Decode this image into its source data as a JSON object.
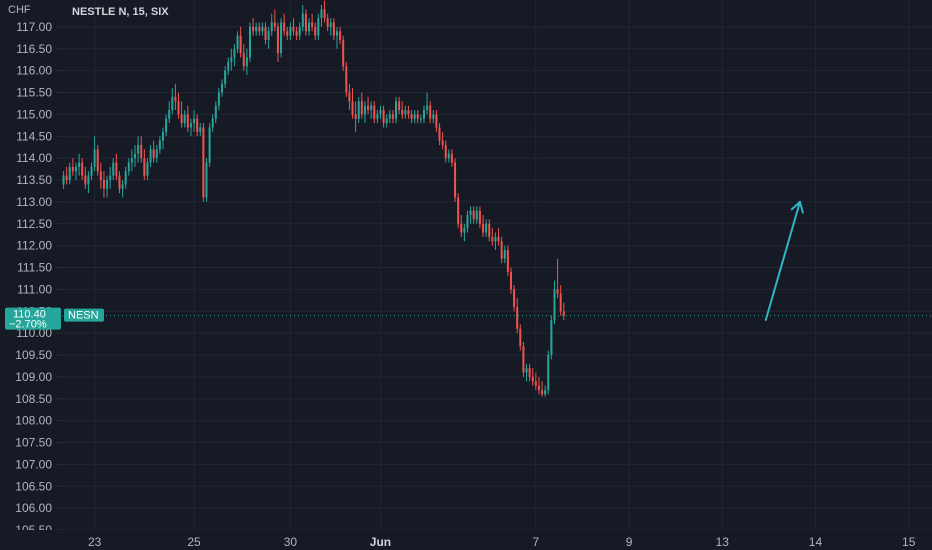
{
  "chart_header": {
    "currency": "CHF",
    "title": "NESTLE N, 15, SIX"
  },
  "colors": {
    "background": "#161a25",
    "grid": "#222633",
    "up": "#26a69a",
    "down": "#ef5350",
    "axis_text": "#b2b5be",
    "price_line": "#26a69a",
    "arrow": "#2fb5c7"
  },
  "price_badge": {
    "price": "110.40",
    "change": "−2.70%",
    "symbol": "NESN"
  },
  "chart_data": {
    "type": "candlestick",
    "title": "NESTLE N, 15, SIX",
    "currency": "CHF",
    "ylim": [
      105.5,
      117.5
    ],
    "y_ticks": [
      "105.50",
      "106.00",
      "106.50",
      "107.00",
      "107.50",
      "108.00",
      "108.50",
      "109.00",
      "109.50",
      "110.00",
      "110.50",
      "111.00",
      "111.50",
      "112.00",
      "112.50",
      "113.00",
      "113.50",
      "114.00",
      "114.50",
      "115.00",
      "115.50",
      "116.00",
      "116.50",
      "117.00"
    ],
    "x_ticks": [
      {
        "label": "23",
        "bold": false
      },
      {
        "label": "25",
        "bold": false
      },
      {
        "label": "30",
        "bold": false
      },
      {
        "label": "Jun",
        "bold": true
      },
      {
        "label": "7",
        "bold": false
      },
      {
        "label": "9",
        "bold": false
      },
      {
        "label": "13",
        "bold": false
      },
      {
        "label": "14",
        "bold": false
      },
      {
        "label": "15",
        "bold": false
      }
    ],
    "x_tick_index": [
      10,
      42,
      73,
      102,
      152,
      182,
      212,
      242,
      272
    ],
    "total_slots": 280,
    "last_price": 110.4,
    "change_pct": "−2.70%",
    "candles": [
      [
        113.4,
        113.7,
        113.3,
        113.6
      ],
      [
        113.6,
        113.8,
        113.4,
        113.5
      ],
      [
        113.5,
        113.9,
        113.4,
        113.8
      ],
      [
        113.8,
        114.0,
        113.6,
        113.7
      ],
      [
        113.7,
        113.9,
        113.5,
        113.8
      ],
      [
        113.8,
        114.1,
        113.6,
        113.9
      ],
      [
        113.9,
        114.0,
        113.5,
        113.6
      ],
      [
        113.6,
        113.8,
        113.3,
        113.4
      ],
      [
        113.4,
        113.7,
        113.2,
        113.6
      ],
      [
        113.6,
        113.9,
        113.5,
        113.8
      ],
      [
        113.8,
        114.5,
        113.7,
        114.2
      ],
      [
        114.2,
        114.3,
        113.6,
        113.7
      ],
      [
        113.7,
        113.9,
        113.3,
        113.5
      ],
      [
        113.5,
        113.7,
        113.1,
        113.3
      ],
      [
        113.3,
        113.6,
        113.1,
        113.5
      ],
      [
        113.5,
        113.8,
        113.3,
        113.6
      ],
      [
        113.6,
        114.0,
        113.5,
        113.9
      ],
      [
        113.9,
        114.1,
        113.5,
        113.6
      ],
      [
        113.6,
        113.7,
        113.2,
        113.3
      ],
      [
        113.3,
        113.5,
        113.1,
        113.4
      ],
      [
        113.4,
        113.8,
        113.3,
        113.7
      ],
      [
        113.7,
        114.0,
        113.6,
        113.9
      ],
      [
        113.9,
        114.2,
        113.7,
        114.0
      ],
      [
        114.0,
        114.3,
        113.8,
        114.1
      ],
      [
        114.1,
        114.5,
        113.9,
        114.3
      ],
      [
        114.3,
        114.5,
        113.9,
        114.0
      ],
      [
        114.0,
        114.2,
        113.5,
        113.6
      ],
      [
        113.6,
        114.0,
        113.5,
        113.9
      ],
      [
        113.9,
        114.3,
        113.8,
        114.2
      ],
      [
        114.2,
        114.4,
        113.9,
        114.0
      ],
      [
        114.0,
        114.3,
        113.9,
        114.2
      ],
      [
        114.2,
        114.5,
        114.1,
        114.4
      ],
      [
        114.4,
        114.7,
        114.2,
        114.6
      ],
      [
        114.6,
        115.0,
        114.5,
        114.9
      ],
      [
        114.9,
        115.3,
        114.8,
        115.1
      ],
      [
        115.1,
        115.6,
        115.0,
        115.4
      ],
      [
        115.4,
        115.7,
        115.1,
        115.3
      ],
      [
        115.3,
        115.5,
        114.9,
        115.0
      ],
      [
        115.0,
        115.3,
        114.7,
        114.8
      ],
      [
        114.8,
        115.1,
        114.7,
        115.0
      ],
      [
        115.0,
        115.2,
        114.6,
        114.7
      ],
      [
        114.7,
        114.9,
        114.5,
        114.8
      ],
      [
        114.8,
        115.1,
        114.6,
        114.9
      ],
      [
        114.9,
        115.0,
        114.5,
        114.6
      ],
      [
        114.6,
        114.8,
        114.5,
        114.7
      ],
      [
        114.7,
        114.8,
        113.0,
        113.1
      ],
      [
        113.1,
        114.0,
        113.0,
        113.9
      ],
      [
        113.9,
        114.8,
        113.8,
        114.7
      ],
      [
        114.7,
        115.0,
        114.6,
        114.9
      ],
      [
        114.9,
        115.3,
        114.8,
        115.2
      ],
      [
        115.2,
        115.6,
        115.1,
        115.5
      ],
      [
        115.5,
        115.8,
        115.4,
        115.7
      ],
      [
        115.7,
        116.1,
        115.6,
        116.0
      ],
      [
        116.0,
        116.3,
        115.9,
        116.2
      ],
      [
        116.2,
        116.5,
        116.0,
        116.3
      ],
      [
        116.3,
        116.6,
        116.1,
        116.5
      ],
      [
        116.5,
        116.9,
        116.4,
        116.8
      ],
      [
        116.8,
        117.0,
        116.3,
        116.4
      ],
      [
        116.4,
        116.6,
        116.0,
        116.1
      ],
      [
        116.1,
        116.5,
        115.9,
        116.3
      ],
      [
        116.3,
        117.1,
        116.2,
        117.0
      ],
      [
        117.0,
        117.2,
        116.8,
        116.9
      ],
      [
        116.9,
        117.1,
        116.8,
        117.0
      ],
      [
        117.0,
        117.1,
        116.8,
        116.9
      ],
      [
        116.9,
        117.1,
        116.8,
        117.0
      ],
      [
        117.0,
        117.1,
        116.6,
        116.7
      ],
      [
        116.7,
        117.0,
        116.5,
        116.9
      ],
      [
        116.9,
        117.3,
        116.8,
        117.1
      ],
      [
        117.1,
        117.4,
        116.9,
        117.0
      ],
      [
        117.0,
        117.1,
        116.2,
        116.4
      ],
      [
        116.4,
        117.2,
        116.3,
        117.1
      ],
      [
        117.1,
        117.3,
        116.8,
        116.9
      ],
      [
        116.9,
        117.0,
        116.7,
        116.8
      ],
      [
        116.8,
        117.1,
        116.7,
        117.0
      ],
      [
        117.0,
        117.2,
        116.8,
        116.9
      ],
      [
        116.9,
        117.0,
        116.7,
        116.8
      ],
      [
        116.8,
        117.1,
        116.7,
        117.0
      ],
      [
        117.0,
        117.5,
        116.9,
        117.3
      ],
      [
        117.3,
        117.4,
        116.8,
        116.9
      ],
      [
        116.9,
        117.2,
        116.8,
        117.1
      ],
      [
        117.1,
        117.3,
        116.9,
        117.0
      ],
      [
        117.0,
        117.1,
        116.7,
        116.8
      ],
      [
        116.8,
        117.3,
        116.7,
        117.2
      ],
      [
        117.2,
        117.5,
        117.0,
        117.4
      ],
      [
        117.4,
        117.6,
        117.1,
        117.2
      ],
      [
        117.2,
        117.3,
        116.9,
        117.0
      ],
      [
        117.0,
        117.2,
        116.8,
        117.1
      ],
      [
        117.1,
        117.2,
        116.7,
        116.8
      ],
      [
        116.8,
        117.0,
        116.5,
        116.9
      ],
      [
        116.9,
        117.0,
        116.6,
        116.7
      ],
      [
        116.7,
        116.8,
        116.0,
        116.1
      ],
      [
        116.1,
        116.2,
        115.4,
        115.5
      ],
      [
        115.5,
        115.7,
        115.1,
        115.3
      ],
      [
        115.3,
        115.6,
        114.9,
        115.0
      ],
      [
        115.0,
        115.3,
        114.6,
        114.9
      ],
      [
        114.9,
        115.4,
        114.8,
        115.3
      ],
      [
        115.3,
        115.5,
        114.9,
        115.0
      ],
      [
        115.0,
        115.3,
        114.8,
        115.2
      ],
      [
        115.2,
        115.4,
        115.0,
        115.1
      ],
      [
        115.1,
        115.3,
        114.9,
        115.2
      ],
      [
        115.2,
        115.3,
        114.8,
        114.9
      ],
      [
        114.9,
        115.1,
        114.8,
        115.0
      ],
      [
        115.0,
        115.2,
        114.9,
        115.1
      ],
      [
        115.1,
        115.2,
        114.7,
        114.8
      ],
      [
        114.8,
        115.0,
        114.7,
        114.9
      ],
      [
        114.9,
        115.1,
        114.8,
        115.0
      ],
      [
        115.0,
        115.1,
        114.8,
        114.9
      ],
      [
        114.9,
        115.4,
        114.8,
        115.3
      ],
      [
        115.3,
        115.4,
        115.0,
        115.1
      ],
      [
        115.1,
        115.3,
        114.9,
        115.0
      ],
      [
        115.0,
        115.2,
        114.9,
        115.1
      ],
      [
        115.1,
        115.2,
        114.9,
        115.0
      ],
      [
        115.0,
        115.1,
        114.8,
        114.9
      ],
      [
        114.9,
        115.1,
        114.8,
        115.0
      ],
      [
        115.0,
        115.1,
        114.8,
        114.9
      ],
      [
        114.9,
        115.0,
        114.8,
        114.9
      ],
      [
        114.9,
        115.2,
        114.8,
        115.1
      ],
      [
        115.1,
        115.5,
        115.0,
        115.2
      ],
      [
        115.2,
        115.3,
        114.8,
        114.9
      ],
      [
        114.9,
        115.1,
        114.8,
        115.0
      ],
      [
        115.0,
        115.1,
        114.6,
        114.7
      ],
      [
        114.7,
        114.8,
        114.3,
        114.4
      ],
      [
        114.4,
        114.6,
        114.2,
        114.3
      ],
      [
        114.3,
        114.4,
        113.9,
        114.0
      ],
      [
        114.0,
        114.2,
        113.9,
        114.1
      ],
      [
        114.1,
        114.2,
        113.8,
        113.9
      ],
      [
        113.9,
        114.0,
        113.0,
        113.1
      ],
      [
        113.1,
        113.2,
        112.4,
        112.5
      ],
      [
        112.5,
        112.7,
        112.2,
        112.3
      ],
      [
        112.3,
        112.5,
        112.1,
        112.4
      ],
      [
        112.4,
        112.8,
        112.3,
        112.7
      ],
      [
        112.7,
        112.9,
        112.5,
        112.8
      ],
      [
        112.8,
        112.9,
        112.5,
        112.6
      ],
      [
        112.6,
        112.9,
        112.5,
        112.8
      ],
      [
        112.8,
        112.9,
        112.4,
        112.5
      ],
      [
        112.5,
        112.7,
        112.2,
        112.3
      ],
      [
        112.3,
        112.6,
        112.2,
        112.5
      ],
      [
        112.5,
        112.6,
        112.1,
        112.2
      ],
      [
        112.2,
        112.4,
        112.0,
        112.1
      ],
      [
        112.1,
        112.3,
        111.9,
        112.2
      ],
      [
        112.2,
        112.4,
        112.0,
        112.1
      ],
      [
        112.1,
        112.2,
        111.6,
        111.7
      ],
      [
        111.7,
        112.0,
        111.6,
        111.9
      ],
      [
        111.9,
        112.0,
        111.3,
        111.4
      ],
      [
        111.4,
        111.5,
        110.9,
        111.0
      ],
      [
        111.0,
        111.1,
        110.5,
        110.6
      ],
      [
        110.6,
        110.8,
        110.0,
        110.1
      ],
      [
        110.1,
        110.2,
        109.6,
        109.7
      ],
      [
        109.7,
        109.8,
        109.0,
        109.1
      ],
      [
        109.1,
        109.3,
        108.9,
        109.2
      ],
      [
        109.2,
        109.3,
        108.9,
        109.0
      ],
      [
        109.0,
        109.2,
        108.8,
        108.9
      ],
      [
        108.9,
        109.1,
        108.7,
        108.8
      ],
      [
        108.8,
        109.0,
        108.6,
        108.7
      ],
      [
        108.7,
        108.9,
        108.55,
        108.6
      ],
      [
        108.6,
        108.8,
        108.55,
        108.7
      ],
      [
        108.7,
        109.6,
        108.6,
        109.5
      ],
      [
        109.5,
        110.4,
        109.4,
        110.3
      ],
      [
        110.3,
        111.2,
        110.2,
        111.0
      ],
      [
        111.0,
        111.7,
        110.8,
        110.9
      ],
      [
        110.9,
        111.1,
        110.4,
        110.5
      ],
      [
        110.5,
        110.7,
        110.3,
        110.4
      ]
    ],
    "projection_arrow": {
      "from": [
        226,
        110.3
      ],
      "to": [
        237,
        113.0
      ]
    }
  }
}
